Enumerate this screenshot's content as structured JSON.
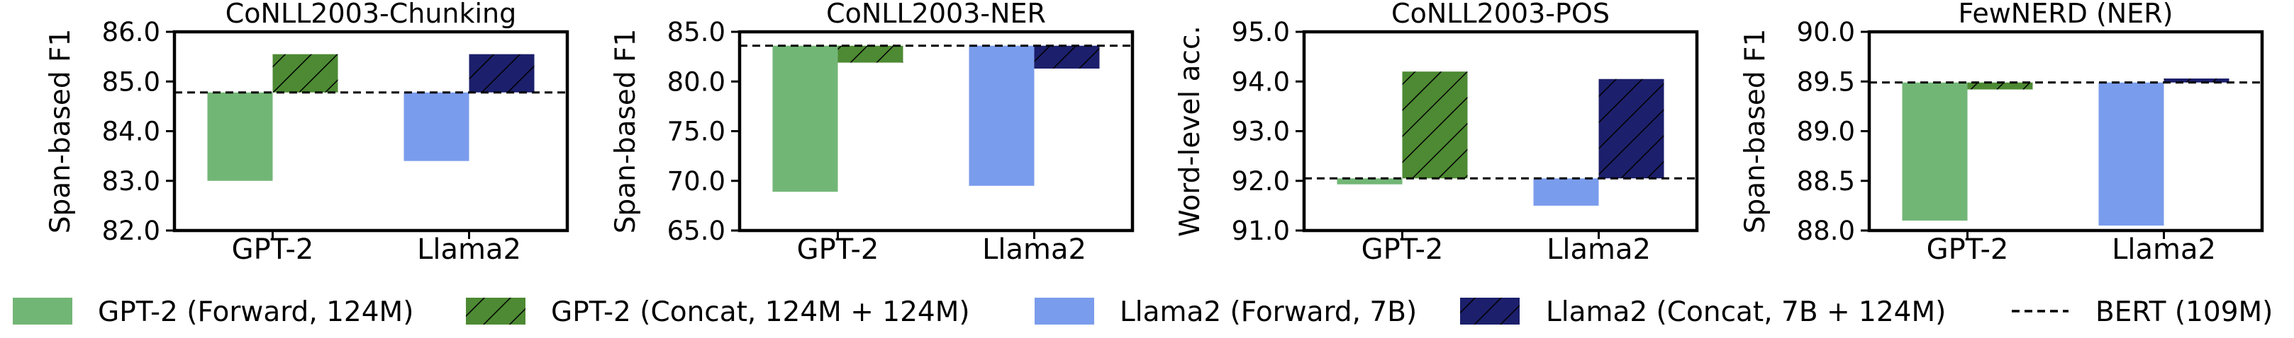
{
  "colors": {
    "gpt2_forward": "#72b676",
    "gpt2_concat": "#4d8a33",
    "llama2_forward": "#7a9cec",
    "llama2_concat": "#1c1f6b",
    "bert": "#000000"
  },
  "legend": {
    "gpt2_forward": "GPT-2 (Forward, 124M)",
    "gpt2_concat": "GPT-2 (Concat, 124M + 124M)",
    "llama2_forward": "Llama2 (Forward, 7B)",
    "llama2_concat": "Llama2 (Concat, 7B + 124M)",
    "bert": "BERT (109M)"
  },
  "chart_data": [
    {
      "type": "bar",
      "title": "CoNLL2003-Chunking",
      "ylabel": "Span-based F1",
      "categories": [
        "GPT-2",
        "Llama2"
      ],
      "ylim": [
        82.0,
        86.0
      ],
      "yticks": [
        "82.0",
        "83.0",
        "84.0",
        "85.0",
        "86.0"
      ],
      "baseline": 84.78,
      "series": [
        {
          "name": "GPT-2 (Forward, 124M)",
          "key": "gpt2_forward",
          "category": "GPT-2",
          "value": 83.0
        },
        {
          "name": "GPT-2 (Concat, 124M + 124M)",
          "key": "gpt2_concat",
          "category": "GPT-2",
          "value": 85.55
        },
        {
          "name": "Llama2 (Forward, 7B)",
          "key": "llama2_forward",
          "category": "Llama2",
          "value": 83.4
        },
        {
          "name": "Llama2 (Concat, 7B + 124M)",
          "key": "llama2_concat",
          "category": "Llama2",
          "value": 85.55
        }
      ]
    },
    {
      "type": "bar",
      "title": "CoNLL2003-NER",
      "ylabel": "Span-based F1",
      "categories": [
        "GPT-2",
        "Llama2"
      ],
      "ylim": [
        65.0,
        85.0
      ],
      "yticks": [
        "65.0",
        "70.0",
        "75.0",
        "80.0",
        "85.0"
      ],
      "baseline": 83.6,
      "series": [
        {
          "name": "GPT-2 (Forward, 124M)",
          "key": "gpt2_forward",
          "category": "GPT-2",
          "value": 68.9
        },
        {
          "name": "GPT-2 (Concat, 124M + 124M)",
          "key": "gpt2_concat",
          "category": "GPT-2",
          "value": 81.9
        },
        {
          "name": "Llama2 (Forward, 7B)",
          "key": "llama2_forward",
          "category": "Llama2",
          "value": 69.5
        },
        {
          "name": "Llama2 (Concat, 7B + 124M)",
          "key": "llama2_concat",
          "category": "Llama2",
          "value": 81.3
        }
      ]
    },
    {
      "type": "bar",
      "title": "CoNLL2003-POS",
      "ylabel": "Word-level acc.",
      "categories": [
        "GPT-2",
        "Llama2"
      ],
      "ylim": [
        91.0,
        95.0
      ],
      "yticks": [
        "91.0",
        "92.0",
        "93.0",
        "94.0",
        "95.0"
      ],
      "baseline": 92.05,
      "series": [
        {
          "name": "GPT-2 (Forward, 124M)",
          "key": "gpt2_forward",
          "category": "GPT-2",
          "value": 91.93
        },
        {
          "name": "GPT-2 (Concat, 124M + 124M)",
          "key": "gpt2_concat",
          "category": "GPT-2",
          "value": 94.2
        },
        {
          "name": "Llama2 (Forward, 7B)",
          "key": "llama2_forward",
          "category": "Llama2",
          "value": 91.5
        },
        {
          "name": "Llama2 (Concat, 7B + 124M)",
          "key": "llama2_concat",
          "category": "Llama2",
          "value": 94.05
        }
      ]
    },
    {
      "type": "bar",
      "title": "FewNERD (NER)",
      "ylabel": "Span-based F1",
      "categories": [
        "GPT-2",
        "Llama2"
      ],
      "ylim": [
        88.0,
        90.0
      ],
      "yticks": [
        "88.0",
        "88.5",
        "89.0",
        "89.5",
        "90.0"
      ],
      "baseline": 89.49,
      "series": [
        {
          "name": "GPT-2 (Forward, 124M)",
          "key": "gpt2_forward",
          "category": "GPT-2",
          "value": 88.1
        },
        {
          "name": "GPT-2 (Concat, 124M + 124M)",
          "key": "gpt2_concat",
          "category": "GPT-2",
          "value": 89.42
        },
        {
          "name": "Llama2 (Forward, 7B)",
          "key": "llama2_forward",
          "category": "Llama2",
          "value": 88.05
        },
        {
          "name": "Llama2 (Concat, 7B + 124M)",
          "key": "llama2_concat",
          "category": "Llama2",
          "value": 89.53
        }
      ]
    }
  ]
}
